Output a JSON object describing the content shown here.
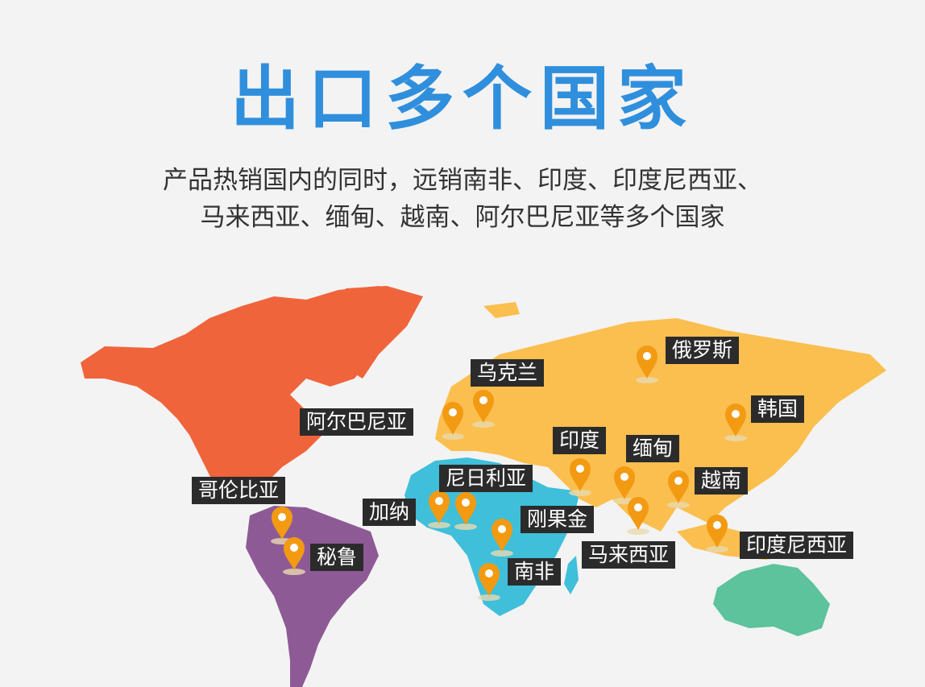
{
  "title": "出口多个国家",
  "subtitle": {
    "line1": "产品热销国内的同时，远销南非、印度、印度尼西亚、",
    "line2": "马来西亚、缅甸、越南、阿尔巴尼亚等多个国家"
  },
  "colors": {
    "title": "#2f8fdc",
    "north_america": "#f0643c",
    "south_america": "#8e5a96",
    "africa": "#3fbfd9",
    "eurasia": "#fbbf4f",
    "oceania": "#5cc39c",
    "pin": "#f29a12",
    "label_bg": "#2b2b2b"
  },
  "map": {
    "pin_icon": "map-pin-icon",
    "countries": [
      {
        "name": "俄罗斯"
      },
      {
        "name": "乌克兰"
      },
      {
        "name": "阿尔巴尼亚"
      },
      {
        "name": "韩国"
      },
      {
        "name": "印度"
      },
      {
        "name": "缅甸"
      },
      {
        "name": "越南"
      },
      {
        "name": "尼日利亚"
      },
      {
        "name": "加纳"
      },
      {
        "name": "哥伦比亚"
      },
      {
        "name": "刚果金"
      },
      {
        "name": "马来西亚"
      },
      {
        "name": "印度尼西亚"
      },
      {
        "name": "秘鲁"
      },
      {
        "name": "南非"
      }
    ]
  }
}
